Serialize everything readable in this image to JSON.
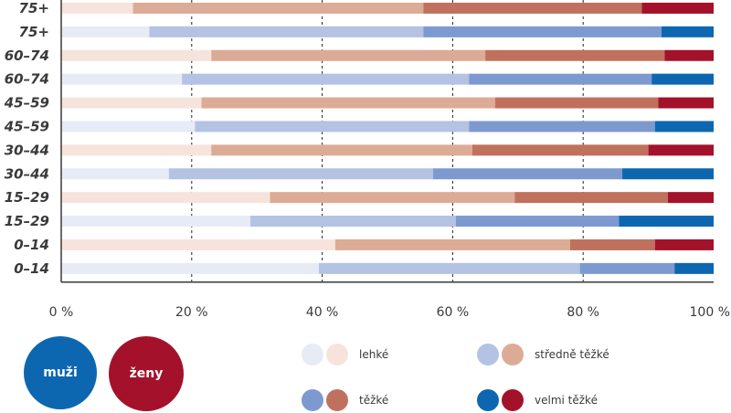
{
  "chart_data": {
    "type": "bar",
    "orientation": "horizontal",
    "stacked": true,
    "percent": true,
    "categories": [
      "75+",
      "75+",
      "60–74",
      "60–74",
      "45–59",
      "45–59",
      "30–44",
      "30–44",
      "15–29",
      "15–29",
      "0–14",
      "0–14"
    ],
    "groups": [
      "ženy",
      "muži",
      "ženy",
      "muži",
      "ženy",
      "muži",
      "ženy",
      "muži",
      "ženy",
      "muži",
      "ženy",
      "muži"
    ],
    "series": [
      {
        "name": "lehké",
        "values": [
          11,
          13.5,
          23,
          18.5,
          21.5,
          20.5,
          23,
          16.5,
          32,
          29,
          42,
          39.5
        ]
      },
      {
        "name": "středně těžké",
        "values": [
          44.5,
          42,
          42,
          44,
          45,
          42,
          40,
          40.5,
          37.5,
          31.5,
          36,
          40
        ]
      },
      {
        "name": "těžké",
        "values": [
          33.5,
          36.5,
          27.5,
          28,
          25,
          28.5,
          27,
          29,
          23.5,
          25,
          13,
          14.5
        ]
      },
      {
        "name": "velmi těžké",
        "values": [
          11,
          8,
          7.5,
          9.5,
          8.5,
          9,
          10,
          14,
          7,
          14.5,
          9,
          6
        ]
      }
    ],
    "xticks": [
      "0 %",
      "20 %",
      "40 %",
      "60 %",
      "80 %",
      "100 %"
    ],
    "xlim": [
      0,
      100
    ],
    "grid": "vertical-dashed",
    "legend_position": "bottom"
  },
  "colors": {
    "muži": [
      "#e6ebf6",
      "#b4c2e3",
      "#7d9ad0",
      "#0d67b0"
    ],
    "ženy": [
      "#f6e4dc",
      "#dcab96",
      "#c0715e",
      "#a3122a"
    ],
    "axis": "#3a3a3a"
  },
  "legend": {
    "men_label": "muži",
    "women_label": "ženy",
    "items": [
      {
        "label": "lehké"
      },
      {
        "label": "středně těžké"
      },
      {
        "label": "těžké"
      },
      {
        "label": "velmi těžké"
      }
    ]
  }
}
